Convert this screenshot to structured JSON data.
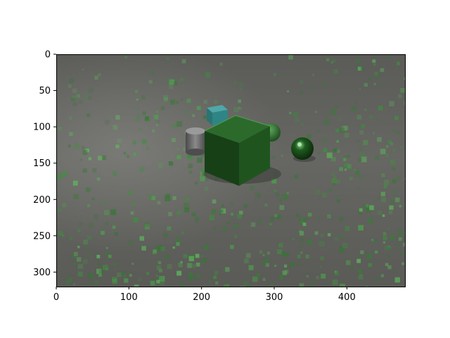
{
  "chart_data": {
    "type": "image",
    "title": "",
    "xlabel": "",
    "ylabel": "",
    "xlim": [
      0,
      480
    ],
    "ylim": [
      320,
      0
    ],
    "x_ticks": [
      0,
      100,
      200,
      300,
      400
    ],
    "y_ticks": [
      0,
      50,
      100,
      150,
      200,
      250,
      300
    ],
    "x_tick_labels": [
      "0",
      "100",
      "200",
      "300",
      "400"
    ],
    "y_tick_labels": [
      "0",
      "50",
      "100",
      "150",
      "200",
      "250",
      "300"
    ],
    "grid": false,
    "legend": "none",
    "image_content": {
      "scene": "rendered 3D objects on a grey floor with green speckle noise overlay",
      "objects": [
        {
          "kind": "cube",
          "color": "#1f5a1f",
          "size": "large"
        },
        {
          "kind": "cube",
          "color": "#2c8a8a",
          "size": "small"
        },
        {
          "kind": "cylinder",
          "color": "#6e6e6e",
          "size": "small"
        },
        {
          "kind": "sphere",
          "color": "#2f7a2f",
          "size": "small"
        },
        {
          "kind": "sphere",
          "color": "#1b4d1b",
          "size": "small",
          "material": "metal"
        }
      ]
    }
  }
}
